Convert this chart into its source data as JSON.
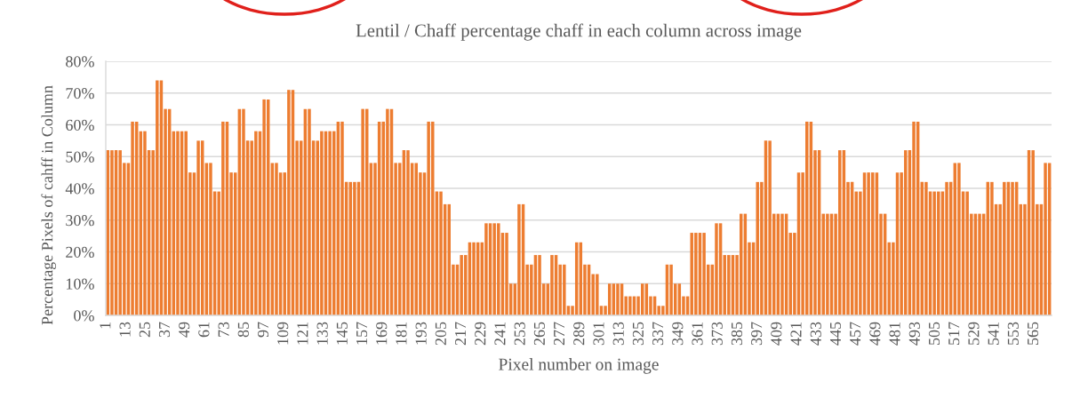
{
  "chart_data": {
    "type": "bar",
    "title": "Lentil / Chaff percentage chaff in each column across image",
    "xlabel": "Pixel number on image",
    "ylabel": "Percentage Pixels of cahff in Column",
    "x": [
      1.75,
      4.25,
      6.75,
      9.25,
      11.75,
      14.25,
      16.75,
      19.25,
      21.75,
      24.25,
      26.75,
      29.25,
      31.75,
      34.25,
      36.75,
      39.25,
      41.75,
      44.25,
      46.75,
      49.25,
      51.75,
      54.25,
      56.75,
      59.25,
      61.75,
      64.25,
      66.75,
      69.25,
      71.75,
      74.25,
      76.75,
      79.25,
      81.75,
      84.25,
      86.75,
      89.25,
      91.75,
      94.25,
      96.75,
      99.25,
      101.75,
      104.25,
      106.75,
      109.25,
      111.75,
      114.25,
      116.75,
      119.25,
      121.75,
      124.25,
      126.75,
      129.25,
      131.75,
      134.25,
      136.75,
      139.25,
      141.75,
      144.25,
      146.75,
      149.25,
      151.75,
      154.25,
      156.75,
      159.25,
      161.75,
      164.25,
      166.75,
      169.25,
      171.75,
      174.25,
      176.75,
      179.25,
      181.75,
      184.25,
      186.75,
      189.25,
      191.75,
      194.25,
      196.75,
      199.25,
      201.75,
      204.25,
      206.75,
      209.25,
      211.75,
      214.25,
      216.75,
      219.25,
      221.75,
      224.25,
      226.75,
      229.25,
      231.75,
      234.25,
      236.75,
      239.25,
      241.75,
      244.25,
      246.75,
      249.25,
      251.75,
      254.25,
      256.75,
      259.25,
      261.75,
      264.25,
      266.75,
      269.25,
      271.75,
      274.25,
      276.75,
      279.25,
      281.75,
      284.25,
      286.75,
      289.25,
      291.75,
      294.25,
      296.75,
      299.25,
      301.75,
      304.25,
      306.75,
      309.25,
      311.75,
      314.25,
      316.75,
      319.25,
      321.75,
      324.25,
      326.75,
      329.25,
      331.75,
      334.25,
      336.75,
      339.25,
      341.75,
      344.25,
      346.75,
      349.25,
      351.75,
      354.25,
      356.75,
      359.25,
      361.75,
      364.25,
      366.75,
      369.25,
      371.75,
      374.25,
      376.75,
      379.25,
      381.75,
      384.25,
      386.75,
      389.25,
      391.75,
      394.25,
      396.75,
      399.25,
      401.75,
      404.25,
      406.75,
      409.25,
      411.75,
      414.25,
      416.75,
      419.25,
      421.75,
      424.25,
      426.75,
      429.25,
      431.75,
      434.25,
      436.75,
      439.25,
      441.75,
      444.25,
      446.75,
      449.25,
      451.75,
      454.25,
      456.75,
      459.25,
      461.75,
      464.25,
      466.75,
      469.25,
      471.75,
      474.25,
      476.75,
      479.25,
      481.75,
      484.25,
      486.75,
      489.25,
      491.75,
      494.25,
      496.75,
      499.25,
      501.75,
      504.25,
      506.75,
      509.25,
      511.75,
      514.25,
      516.75,
      519.25,
      521.75,
      524.25,
      526.75,
      529.25,
      531.75,
      534.25,
      536.75,
      539.25,
      541.75,
      544.25,
      546.75,
      549.25,
      551.75,
      554.25,
      556.75,
      559.25,
      561.75,
      564.25,
      566.75,
      569.25,
      571.75,
      574.25
    ],
    "values": [
      52,
      52,
      52,
      52,
      48,
      48,
      61,
      61,
      58,
      58,
      52,
      52,
      74,
      74,
      65,
      65,
      58,
      58,
      58,
      58,
      45,
      45,
      55,
      55,
      48,
      48,
      39,
      39,
      61,
      61,
      45,
      45,
      65,
      65,
      55,
      55,
      58,
      58,
      68,
      68,
      48,
      48,
      45,
      45,
      71,
      71,
      55,
      55,
      65,
      65,
      55,
      55,
      58,
      58,
      58,
      58,
      61,
      61,
      42,
      42,
      42,
      42,
      65,
      65,
      48,
      48,
      61,
      61,
      65,
      65,
      48,
      48,
      52,
      52,
      48,
      48,
      45,
      45,
      61,
      61,
      39,
      39,
      35,
      35,
      16,
      16,
      19,
      19,
      23,
      23,
      23,
      23,
      29,
      29,
      29,
      29,
      26,
      26,
      10,
      10,
      35,
      35,
      16,
      16,
      19,
      19,
      10,
      10,
      19,
      19,
      16,
      16,
      3,
      3,
      23,
      23,
      16,
      16,
      13,
      13,
      3,
      3,
      10,
      10,
      10,
      10,
      6,
      6,
      6,
      6,
      10,
      10,
      6,
      6,
      3,
      3,
      16,
      16,
      10,
      10,
      6,
      6,
      26,
      26,
      26,
      26,
      16,
      16,
      29,
      29,
      19,
      19,
      19,
      19,
      32,
      32,
      23,
      23,
      42,
      42,
      55,
      55,
      32,
      32,
      32,
      32,
      26,
      26,
      45,
      45,
      61,
      61,
      52,
      52,
      32,
      32,
      32,
      32,
      52,
      52,
      42,
      42,
      39,
      39,
      45,
      45,
      45,
      45,
      32,
      32,
      23,
      23,
      45,
      45,
      52,
      52,
      61,
      61,
      42,
      42,
      39,
      39,
      39,
      39,
      42,
      42,
      48,
      48,
      39,
      39,
      32,
      32,
      32,
      32,
      42,
      42,
      35,
      35,
      42,
      42,
      42,
      42,
      35,
      35,
      52,
      52,
      35,
      35,
      48,
      48
    ],
    "color": "#ed7d31",
    "xlim": [
      0.5,
      575.5
    ],
    "xticks": [
      1,
      13,
      25,
      37,
      49,
      61,
      73,
      85,
      97,
      109,
      121,
      133,
      145,
      157,
      169,
      181,
      193,
      205,
      217,
      229,
      241,
      253,
      265,
      277,
      289,
      301,
      313,
      325,
      337,
      349,
      361,
      373,
      385,
      397,
      409,
      421,
      433,
      445,
      457,
      469,
      481,
      493,
      505,
      517,
      529,
      541,
      553,
      565
    ],
    "ylim": [
      0,
      80
    ],
    "yticks": [
      {
        "value": 0,
        "label": "0%"
      },
      {
        "value": 10,
        "label": "10%"
      },
      {
        "value": 20,
        "label": "20%"
      },
      {
        "value": 30,
        "label": "30%"
      },
      {
        "value": 40,
        "label": "40%"
      },
      {
        "value": 50,
        "label": "50%"
      },
      {
        "value": 60,
        "label": "60%"
      },
      {
        "value": 70,
        "label": "70%"
      },
      {
        "value": 80,
        "label": "80%"
      }
    ],
    "grid": "y"
  }
}
